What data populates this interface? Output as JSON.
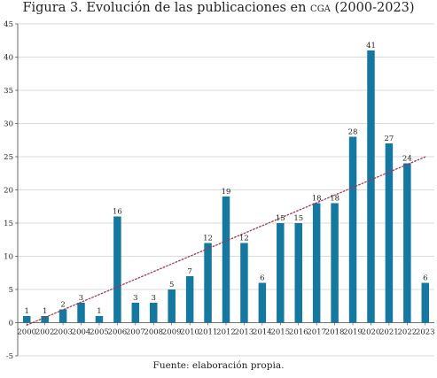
{
  "title": {
    "prefix": "Figura 3. Evolución de las publicaciones en ",
    "acronym": "cga",
    "suffix": " (2000-2023)"
  },
  "source_note": "Fuente: elaboración propia.",
  "colors": {
    "bar": "#1578a0",
    "trend": "#a03a52",
    "axis": "#444444",
    "grid": "#cfcfcf"
  },
  "chart_data": {
    "type": "bar",
    "categories": [
      "2000",
      "2002",
      "2003",
      "2004",
      "2005",
      "2006",
      "2007",
      "2008",
      "2009",
      "2010",
      "2011",
      "2012",
      "2013",
      "2014",
      "2015",
      "2016",
      "2017",
      "2018",
      "2019",
      "2020",
      "2021",
      "2022",
      "2023"
    ],
    "series": [
      {
        "values": [
          1,
          1,
          2,
          3,
          1,
          16,
          3,
          3,
          5,
          7,
          12,
          19,
          12,
          6,
          15,
          15,
          18,
          18,
          28,
          41,
          27,
          24,
          6
        ]
      }
    ],
    "trendline": {
      "type": "linear",
      "style": "dotted"
    },
    "title": "Figura 3. Evolución de las publicaciones en cga (2000-2023)",
    "xlabel": "",
    "ylabel": "",
    "ylim": [
      -5,
      45
    ],
    "yticks": [
      -5,
      0,
      5,
      10,
      15,
      20,
      25,
      30,
      35,
      40,
      45
    ],
    "grid": true,
    "data_labels": true,
    "legend": "none"
  }
}
